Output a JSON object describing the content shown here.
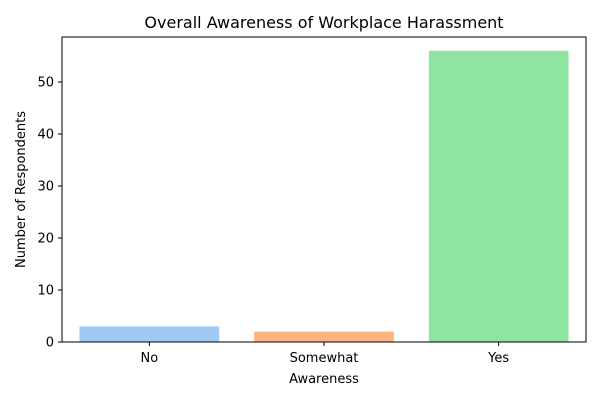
{
  "chart_data": {
    "type": "bar",
    "title": "Overall Awareness of Workplace Harassment",
    "xlabel": "Awareness",
    "ylabel": "Number of Respondents",
    "categories": [
      "No",
      "Somewhat",
      "Yes"
    ],
    "values": [
      3,
      2,
      56
    ],
    "colors": [
      "#a1c9f4",
      "#ffb482",
      "#8de5a1"
    ],
    "yticks": [
      "0",
      "10",
      "20",
      "30",
      "40",
      "50"
    ],
    "ylim": [
      0,
      58.65
    ],
    "grid": false,
    "legend": "none"
  }
}
